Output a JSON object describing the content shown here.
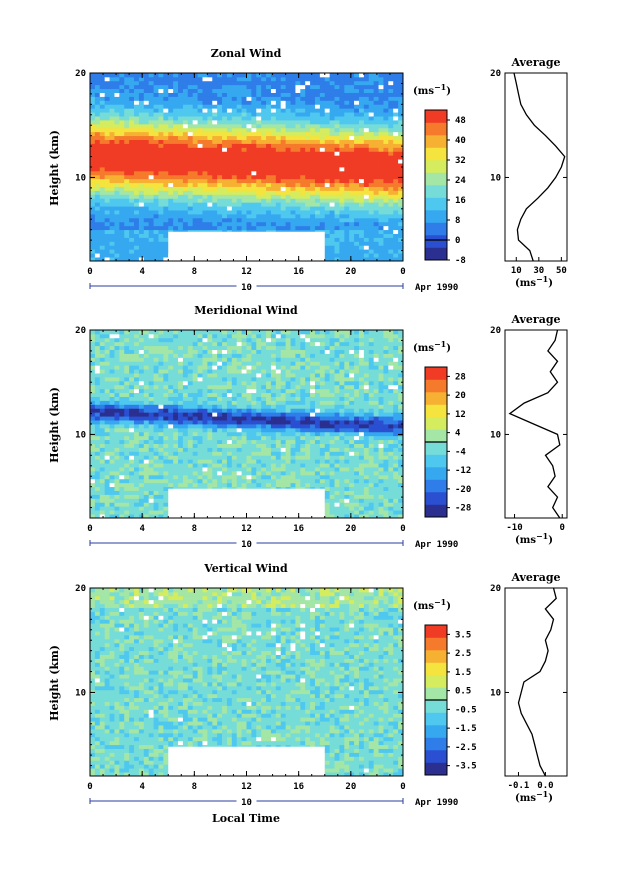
{
  "chart_data": [
    {
      "type": "heatmap",
      "title": "Zonal Wind",
      "xlabel": "",
      "ylabel": "Height (km)",
      "xticks": [
        "0",
        "4",
        "8",
        "12",
        "16",
        "20",
        "0"
      ],
      "yticks": [
        "10",
        "20"
      ],
      "xlim": [
        0,
        24
      ],
      "ylim": [
        2,
        20
      ],
      "date_day": "10",
      "date_month": "Apr 1990",
      "colorbar": {
        "unit": "(ms",
        "unit_exp": "−1",
        "unit_close": ")",
        "ticks": [
          "48",
          "40",
          "32",
          "24",
          "16",
          "8",
          "0",
          "-8"
        ],
        "min": -8,
        "max": 52
      },
      "profile": {
        "title": "Average",
        "xticks": [
          "10",
          "30",
          "50"
        ],
        "xlim": [
          0,
          55
        ],
        "yticks": [
          "10",
          "20"
        ],
        "xunit": "(ms",
        "xunit_exp": "−1",
        "xunit_close": ")",
        "heights": [
          2,
          3,
          4,
          5,
          6,
          7,
          8,
          9,
          10,
          11,
          12,
          13,
          14,
          15,
          16,
          17,
          18,
          19,
          20
        ],
        "values": [
          25,
          22,
          12,
          11,
          14,
          19,
          29,
          38,
          45,
          50,
          53,
          45,
          36,
          26,
          19,
          14,
          12,
          10,
          8
        ]
      },
      "data_gap_hours": [
        6,
        18
      ]
    },
    {
      "type": "heatmap",
      "title": "Meridional Wind",
      "xlabel": "",
      "ylabel": "Height (km)",
      "xticks": [
        "0",
        "4",
        "8",
        "12",
        "16",
        "20",
        "0"
      ],
      "yticks": [
        "10",
        "20"
      ],
      "xlim": [
        0,
        24
      ],
      "ylim": [
        2,
        20
      ],
      "date_day": "10",
      "date_month": "Apr 1990",
      "colorbar": {
        "unit": "(ms",
        "unit_exp": "−1",
        "unit_close": ")",
        "ticks": [
          "28",
          "20",
          "12",
          "4",
          "-4",
          "-12",
          "-20",
          "-28"
        ],
        "min": -32,
        "max": 32
      },
      "profile": {
        "title": "Average",
        "xticks": [
          "-10",
          "0"
        ],
        "xlim": [
          -12,
          1
        ],
        "yticks": [
          "10",
          "20"
        ],
        "xunit": "(ms",
        "xunit_exp": "−1",
        "xunit_close": ")",
        "heights": [
          2,
          3,
          4,
          5,
          6,
          7,
          8,
          9,
          10,
          11,
          12,
          13,
          14,
          15,
          16,
          17,
          18,
          19,
          20
        ],
        "values": [
          -0.5,
          -2,
          -1,
          -3,
          -1.5,
          -2,
          -3.5,
          -0.5,
          -1,
          -6,
          -11,
          -8,
          -3,
          -1,
          -2.5,
          -1,
          -3,
          -1.5,
          -1
        ]
      },
      "data_gap_hours": [
        6,
        18
      ]
    },
    {
      "type": "heatmap",
      "title": "Vertical Wind",
      "xlabel": "Local Time",
      "ylabel": "Height (km)",
      "xticks": [
        "0",
        "4",
        "8",
        "12",
        "16",
        "20",
        "0"
      ],
      "yticks": [
        "10",
        "20"
      ],
      "xlim": [
        0,
        24
      ],
      "ylim": [
        2,
        20
      ],
      "date_day": "10",
      "date_month": "Apr 1990",
      "colorbar": {
        "unit": "(ms",
        "unit_exp": "−1",
        "unit_close": ")",
        "ticks": [
          "3.5",
          "2.5",
          "1.5",
          "0.5",
          "-0.5",
          "-1.5",
          "-2.5",
          "-3.5"
        ],
        "min": -4,
        "max": 4
      },
      "profile": {
        "title": "Average",
        "xticks": [
          "-0.1",
          "0.0"
        ],
        "xlim": [
          -0.15,
          0.08
        ],
        "yticks": [
          "10",
          "20"
        ],
        "xunit": "(ms",
        "xunit_exp": "−1",
        "xunit_close": ")",
        "heights": [
          2,
          3,
          4,
          5,
          6,
          7,
          8,
          9,
          10,
          11,
          12,
          13,
          14,
          15,
          16,
          17,
          18,
          19,
          20
        ],
        "values": [
          0.0,
          -0.02,
          -0.03,
          -0.04,
          -0.05,
          -0.07,
          -0.09,
          -0.1,
          -0.09,
          -0.08,
          -0.02,
          0.0,
          0.01,
          0.0,
          0.02,
          0.03,
          0.0,
          0.04,
          0.03
        ]
      },
      "data_gap_hours": [
        6,
        18
      ]
    }
  ],
  "palette": [
    "#2b2f8f",
    "#2a4fd1",
    "#2e7de8",
    "#35a8f0",
    "#4fc8ef",
    "#76dcd7",
    "#a3e6a6",
    "#d4ec5e",
    "#f5e33e",
    "#f7b132",
    "#f57a2b",
    "#f03c25"
  ]
}
